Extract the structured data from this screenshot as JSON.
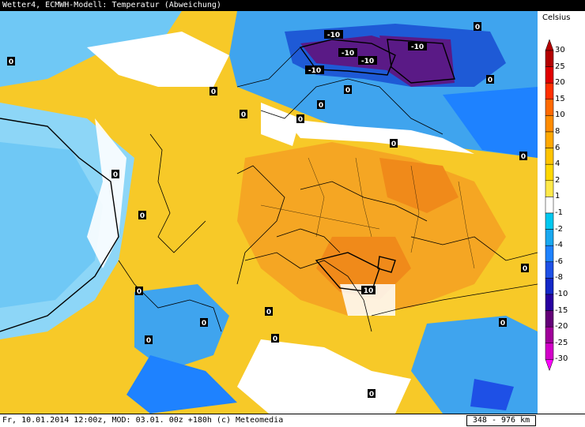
{
  "header": {
    "title": "Wetter4, ECMWH-Modell: Temperatur (Abweichung)"
  },
  "legend": {
    "unit": "Celsius",
    "ticks": [
      "30",
      "25",
      "20",
      "15",
      "10",
      "8",
      "6",
      "4",
      "2",
      "1",
      "-1",
      "-2",
      "-4",
      "-6",
      "-8",
      "-10",
      "-15",
      "-20",
      "-25",
      "-30"
    ],
    "colors": [
      "#b40000",
      "#e00000",
      "#ff3000",
      "#ff6a00",
      "#ff8c00",
      "#ffa800",
      "#ffc400",
      "#ffd800",
      "#ffe94a",
      "#ffffff",
      "#00c8f0",
      "#19a8f0",
      "#1e82ff",
      "#1e50e6",
      "#1428c8",
      "#2800a0",
      "#640078",
      "#a0009a",
      "#d200c8",
      "#ff00ff"
    ]
  },
  "contour_labels": [
    "-10",
    "-10",
    "-10",
    "-10",
    "-10",
    "0",
    "0",
    "0",
    "0",
    "0",
    "0",
    "0",
    "0",
    "0",
    "0",
    "0",
    "0",
    "0",
    "0",
    "0",
    "0",
    "0",
    "10",
    "0",
    "0",
    "0"
  ],
  "footer": {
    "text": "Fr, 10.01.2014 12:00z, MOD: 03.01. 00z +180h (c) Meteomedia",
    "scale": "348 - 976 km"
  }
}
